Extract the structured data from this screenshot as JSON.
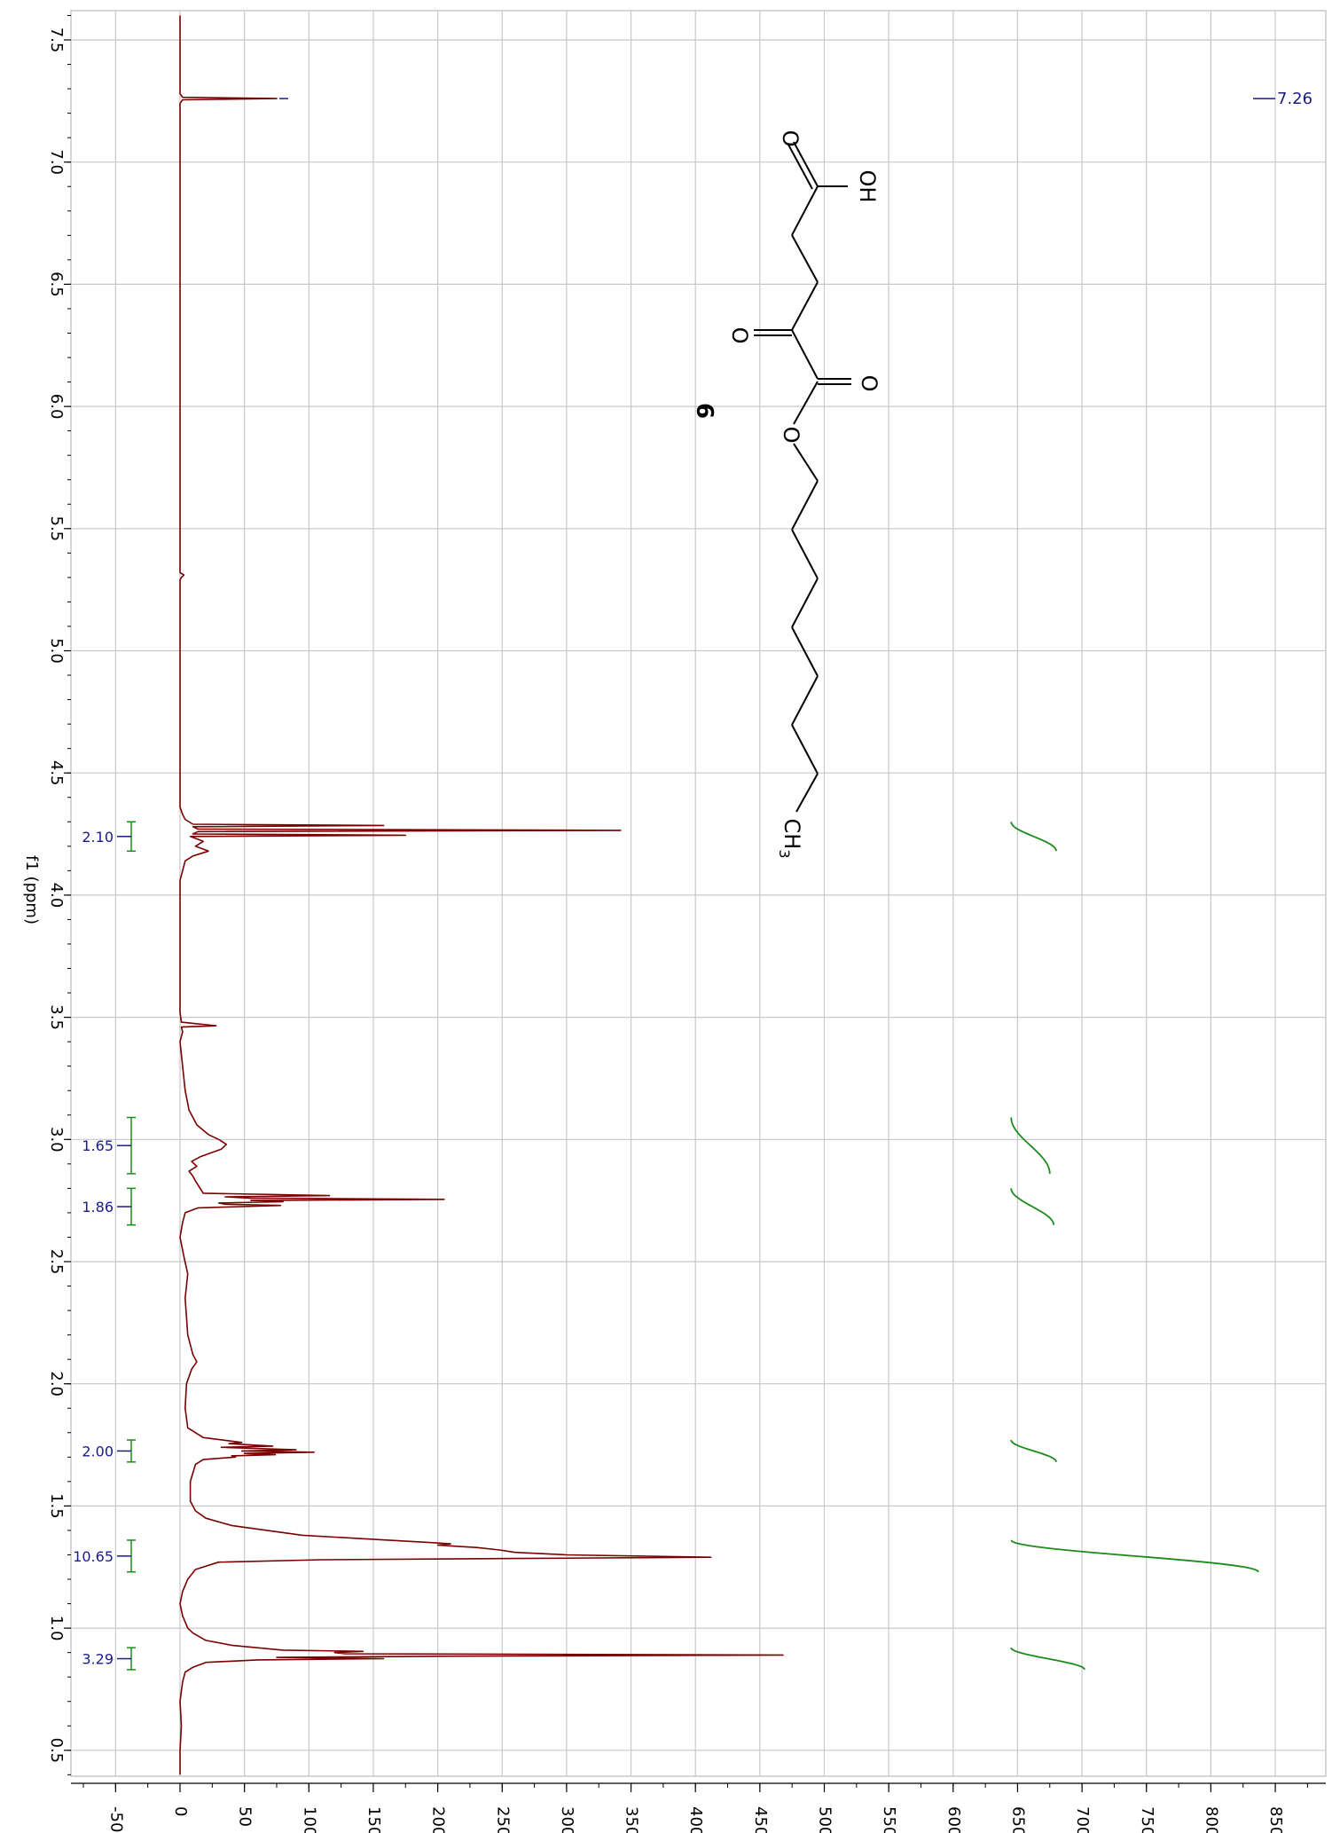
{
  "chart_data": {
    "type": "line",
    "orientation": "rotated-90",
    "xlabel": "f1 (ppm)",
    "ylabel": "",
    "xlim": [
      7.6,
      0.4
    ],
    "ylim": [
      -80,
      880
    ],
    "x_ticks": [
      "7.5",
      "7.0",
      "6.5",
      "6.0",
      "5.5",
      "5.0",
      "4.5",
      "4.0",
      "3.5",
      "3.0",
      "2.5",
      "2.0",
      "1.5",
      "1.0",
      "0.5"
    ],
    "y_ticks": [
      "-50",
      "0",
      "50",
      "100",
      "150",
      "200",
      "250",
      "300",
      "350",
      "400",
      "450",
      "500",
      "550",
      "600",
      "650",
      "700",
      "750",
      "800",
      "850"
    ],
    "grid": true,
    "spectrum_color": "#7a0000",
    "integral_color": "#1a8c1a",
    "label_color": "#1a1a8c",
    "spectrum": [
      [
        7.6,
        0
      ],
      [
        7.28,
        0
      ],
      [
        7.265,
        2
      ],
      [
        7.26,
        75
      ],
      [
        7.255,
        2
      ],
      [
        7.24,
        0
      ],
      [
        5.32,
        0
      ],
      [
        5.31,
        3
      ],
      [
        5.3,
        1
      ],
      [
        5.29,
        0
      ],
      [
        4.36,
        0
      ],
      [
        4.33,
        2
      ],
      [
        4.31,
        4
      ],
      [
        4.29,
        10
      ],
      [
        4.285,
        158
      ],
      [
        4.28,
        10
      ],
      [
        4.27,
        14
      ],
      [
        4.265,
        342
      ],
      [
        4.26,
        14
      ],
      [
        4.25,
        10
      ],
      [
        4.245,
        175
      ],
      [
        4.24,
        8
      ],
      [
        4.22,
        18
      ],
      [
        4.2,
        12
      ],
      [
        4.18,
        22
      ],
      [
        4.16,
        10
      ],
      [
        4.14,
        4
      ],
      [
        4.1,
        2
      ],
      [
        4.06,
        0
      ],
      [
        3.52,
        0
      ],
      [
        3.48,
        1
      ],
      [
        3.465,
        28
      ],
      [
        3.46,
        1
      ],
      [
        3.44,
        2
      ],
      [
        3.4,
        0
      ],
      [
        3.3,
        2
      ],
      [
        3.2,
        4
      ],
      [
        3.12,
        7
      ],
      [
        3.06,
        13
      ],
      [
        3.02,
        22
      ],
      [
        3.0,
        30
      ],
      [
        2.98,
        36
      ],
      [
        2.96,
        32
      ],
      [
        2.93,
        16
      ],
      [
        2.91,
        9
      ],
      [
        2.89,
        13
      ],
      [
        2.87,
        7
      ],
      [
        2.85,
        10
      ],
      [
        2.83,
        12
      ],
      [
        2.78,
        18
      ],
      [
        2.77,
        116
      ],
      [
        2.765,
        35
      ],
      [
        2.76,
        55
      ],
      [
        2.755,
        205
      ],
      [
        2.75,
        55
      ],
      [
        2.745,
        80
      ],
      [
        2.74,
        30
      ],
      [
        2.735,
        35
      ],
      [
        2.73,
        78
      ],
      [
        2.72,
        14
      ],
      [
        2.7,
        4
      ],
      [
        2.66,
        2
      ],
      [
        2.6,
        0
      ],
      [
        2.52,
        3
      ],
      [
        2.45,
        6
      ],
      [
        2.35,
        4
      ],
      [
        2.2,
        6
      ],
      [
        2.12,
        10
      ],
      [
        2.09,
        13
      ],
      [
        2.06,
        9
      ],
      [
        2.0,
        5
      ],
      [
        1.9,
        4
      ],
      [
        1.82,
        6
      ],
      [
        1.78,
        18
      ],
      [
        1.76,
        48
      ],
      [
        1.755,
        38
      ],
      [
        1.745,
        72
      ],
      [
        1.74,
        32
      ],
      [
        1.73,
        90
      ],
      [
        1.725,
        48
      ],
      [
        1.72,
        104
      ],
      [
        1.715,
        50
      ],
      [
        1.71,
        74
      ],
      [
        1.705,
        40
      ],
      [
        1.7,
        43
      ],
      [
        1.69,
        18
      ],
      [
        1.67,
        12
      ],
      [
        1.6,
        8
      ],
      [
        1.52,
        8
      ],
      [
        1.48,
        12
      ],
      [
        1.45,
        20
      ],
      [
        1.42,
        40
      ],
      [
        1.38,
        95
      ],
      [
        1.35,
        195
      ],
      [
        1.345,
        210
      ],
      [
        1.34,
        200
      ],
      [
        1.33,
        230
      ],
      [
        1.32,
        248
      ],
      [
        1.31,
        260
      ],
      [
        1.3,
        300
      ],
      [
        1.29,
        412
      ],
      [
        1.285,
        260
      ],
      [
        1.28,
        110
      ],
      [
        1.27,
        30
      ],
      [
        1.24,
        12
      ],
      [
        1.2,
        6
      ],
      [
        1.15,
        2
      ],
      [
        1.1,
        0
      ],
      [
        1.05,
        2
      ],
      [
        1.0,
        6
      ],
      [
        0.98,
        10
      ],
      [
        0.95,
        20
      ],
      [
        0.93,
        40
      ],
      [
        0.91,
        80
      ],
      [
        0.905,
        142
      ],
      [
        0.9,
        120
      ],
      [
        0.895,
        128
      ],
      [
        0.89,
        468
      ],
      [
        0.885,
        200
      ],
      [
        0.88,
        75
      ],
      [
        0.875,
        158
      ],
      [
        0.87,
        60
      ],
      [
        0.86,
        20
      ],
      [
        0.84,
        10
      ],
      [
        0.82,
        4
      ],
      [
        0.78,
        2
      ],
      [
        0.7,
        0
      ],
      [
        0.6,
        1
      ],
      [
        0.5,
        0
      ],
      [
        0.4,
        0
      ]
    ],
    "integrals": [
      {
        "label": "2.10",
        "from": 4.3,
        "to": 4.18,
        "y_start": 645,
        "y_end": 680
      },
      {
        "label": "1.65",
        "from": 3.09,
        "to": 2.86,
        "y_start": 645,
        "y_end": 675
      },
      {
        "label": "1.86",
        "from": 2.8,
        "to": 2.65,
        "y_start": 645,
        "y_end": 678
      },
      {
        "label": "2.00",
        "from": 1.77,
        "to": 1.68,
        "y_start": 645,
        "y_end": 680
      },
      {
        "label": "10.65",
        "from": 1.36,
        "to": 1.23,
        "y_start": 645,
        "y_end": 837
      },
      {
        "label": "3.29",
        "from": 0.92,
        "to": 0.83,
        "y_start": 645,
        "y_end": 702
      }
    ],
    "peak_labels": [
      {
        "label": "7.26",
        "ppm": 7.26
      }
    ]
  },
  "molecule": {
    "compound_number": "6",
    "atoms": {
      "o_top": "O",
      "oh": "OH",
      "o_ketone": "O",
      "o_ester_carbonyl": "O",
      "o_ester": "O",
      "ch3": "CH",
      "ch3_sub": "3"
    }
  }
}
